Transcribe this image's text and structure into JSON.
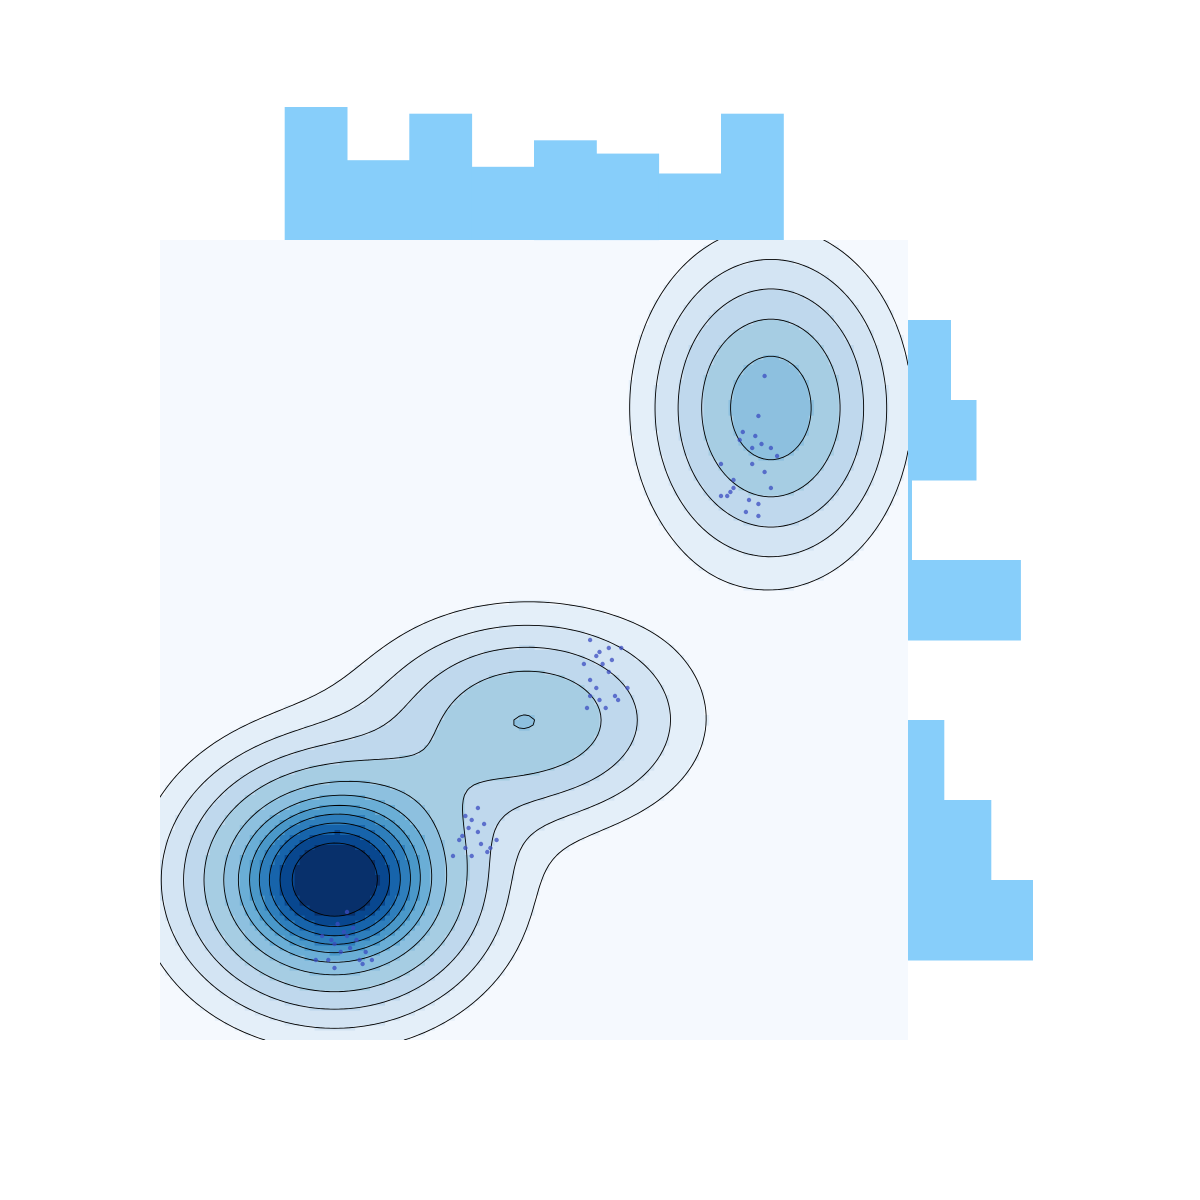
{
  "chart_data": {
    "type": "kde-joint",
    "title": "",
    "xlabel": "",
    "ylabel": "",
    "xlim": [
      0,
      12
    ],
    "ylim": [
      0,
      10
    ],
    "grid": false,
    "legend": "none",
    "colors": {
      "fill_ramp": [
        "#f5f9fe",
        "#e4eff9",
        "#d3e4f3",
        "#bfd8ed",
        "#a6cde3",
        "#8dc0df",
        "#6aaed6",
        "#4a98c9",
        "#2e7ebc",
        "#1764ab",
        "#08478f",
        "#08306b"
      ],
      "contour_line": "#000000",
      "scatter_point": "#3b4cc0",
      "marginal_bar": "#87cefa"
    },
    "kde_components": [
      {
        "cx": 2.8,
        "cy": 2.0,
        "sx": 1.35,
        "sy": 0.9,
        "weight": 0.6
      },
      {
        "cx": 5.9,
        "cy": 4.0,
        "sx": 1.45,
        "sy": 0.75,
        "weight": 0.25
      },
      {
        "cx": 9.8,
        "cy": 7.9,
        "sx": 1.1,
        "sy": 1.1,
        "weight": 0.3
      }
    ],
    "contour_levels": [
      0.06,
      0.12,
      0.2,
      0.3,
      0.42,
      0.52,
      0.6,
      0.67,
      0.74,
      0.81,
      0.88
    ],
    "points": [
      [
        9.6,
        7.8
      ],
      [
        9.3,
        7.5
      ],
      [
        9.5,
        7.4
      ],
      [
        9.2,
        7.0
      ],
      [
        9.1,
        6.8
      ],
      [
        9.7,
        7.1
      ],
      [
        9.8,
        7.4
      ],
      [
        9.4,
        6.6
      ],
      [
        9.5,
        7.2
      ],
      [
        9.9,
        7.3
      ],
      [
        9.0,
        7.2
      ],
      [
        9.2,
        6.9
      ],
      [
        9.6,
        6.7
      ],
      [
        9.0,
        6.8
      ],
      [
        9.8,
        6.9
      ],
      [
        9.35,
        7.6
      ],
      [
        9.55,
        7.55
      ],
      [
        9.45,
        6.75
      ],
      [
        9.65,
        7.45
      ],
      [
        9.15,
        6.85
      ],
      [
        9.7,
        8.3
      ],
      [
        9.6,
        6.55
      ],
      [
        6.9,
        5.0
      ],
      [
        7.0,
        4.8
      ],
      [
        7.2,
        4.9
      ],
      [
        7.4,
        4.9
      ],
      [
        6.8,
        4.7
      ],
      [
        7.1,
        4.7
      ],
      [
        6.9,
        4.5
      ],
      [
        7.3,
        4.3
      ],
      [
        7.0,
        4.4
      ],
      [
        7.2,
        4.6
      ],
      [
        7.5,
        4.4
      ],
      [
        6.9,
        4.3
      ],
      [
        6.85,
        4.15
      ],
      [
        7.15,
        4.15
      ],
      [
        7.05,
        4.85
      ],
      [
        7.25,
        4.75
      ],
      [
        7.35,
        4.25
      ],
      [
        7.05,
        4.25
      ],
      [
        4.9,
        2.8
      ],
      [
        5.1,
        2.6
      ],
      [
        4.8,
        2.5
      ],
      [
        5.3,
        2.4
      ],
      [
        5.0,
        2.3
      ],
      [
        4.7,
        2.3
      ],
      [
        5.4,
        2.5
      ],
      [
        5.2,
        2.7
      ],
      [
        4.9,
        2.4
      ],
      [
        5.1,
        2.9
      ],
      [
        5.0,
        2.75
      ],
      [
        5.15,
        2.45
      ],
      [
        4.85,
        2.55
      ],
      [
        5.25,
        2.35
      ],
      [
        4.95,
        2.65
      ],
      [
        2.8,
        1.2
      ],
      [
        3.0,
        1.3
      ],
      [
        3.2,
        1.0
      ],
      [
        2.9,
        1.1
      ],
      [
        3.1,
        1.4
      ],
      [
        2.7,
        1.0
      ],
      [
        3.3,
        1.1
      ],
      [
        2.6,
        1.3
      ],
      [
        3.0,
        1.6
      ],
      [
        2.8,
        0.9
      ],
      [
        3.4,
        1.0
      ],
      [
        2.5,
        1.0
      ],
      [
        3.05,
        1.15
      ],
      [
        2.95,
        1.35
      ],
      [
        3.15,
        1.25
      ],
      [
        2.75,
        1.25
      ],
      [
        3.25,
        0.95
      ],
      [
        2.85,
        1.45
      ]
    ],
    "marginal_x": {
      "bin_edges": [
        2,
        3,
        4,
        5,
        6,
        7,
        8,
        9,
        10
      ],
      "counts": [
        10,
        6,
        9.5,
        5.5,
        7.5,
        6.5,
        5,
        9.5
      ]
    },
    "marginal_y": {
      "bin_edges": [
        1,
        2,
        3,
        4,
        5,
        6,
        7,
        8,
        9
      ],
      "counts": [
        9.3,
        6.2,
        2.7,
        0,
        8.4,
        0.3,
        5.1,
        3.2
      ]
    }
  }
}
